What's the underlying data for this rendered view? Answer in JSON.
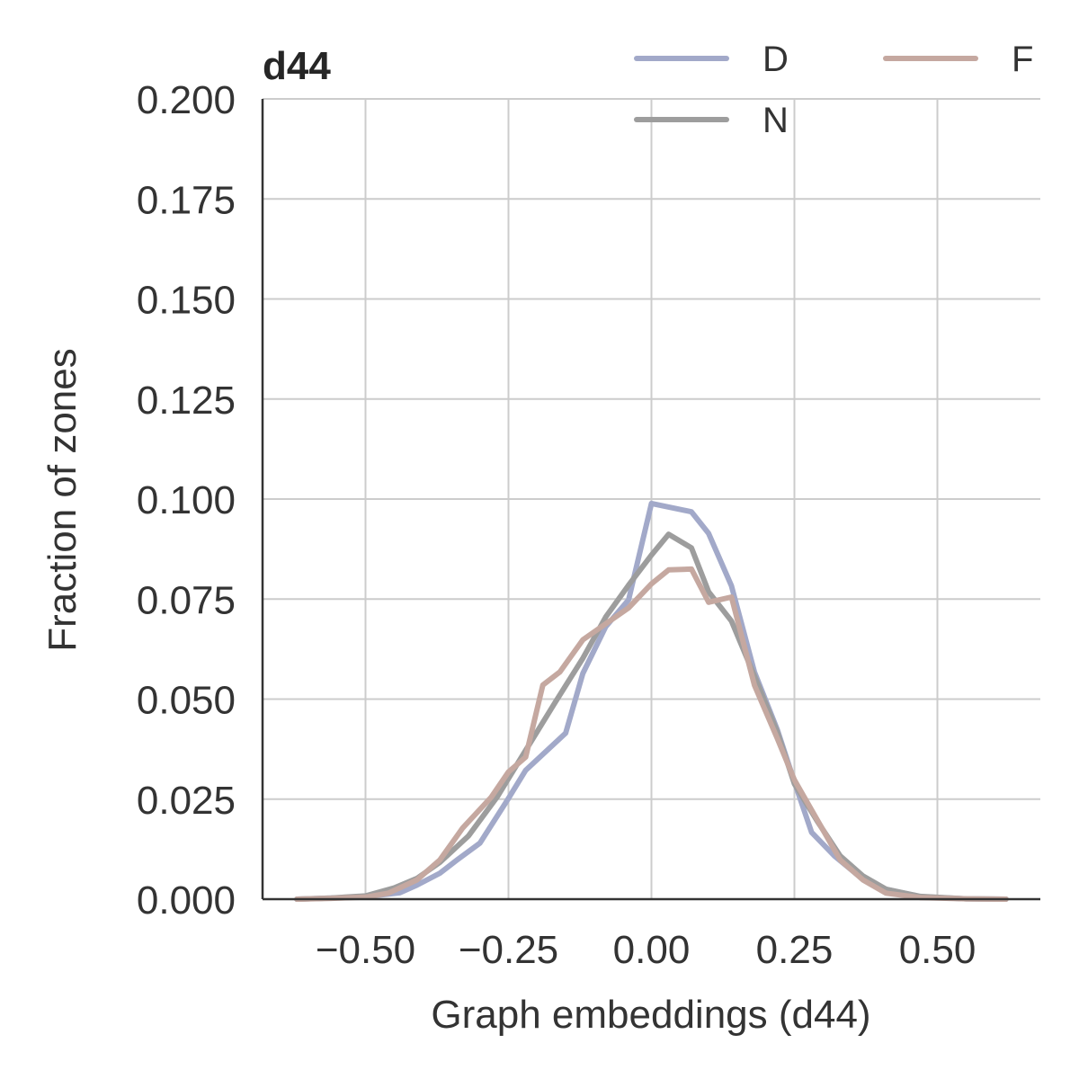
{
  "chart_data": {
    "type": "line",
    "title": "d44",
    "xlabel": "Graph embeddings (d44)",
    "ylabel": "Fraction of zones",
    "xlim": [
      -0.68,
      0.68
    ],
    "ylim": [
      0.0,
      0.2
    ],
    "x_ticks": [
      -0.5,
      -0.25,
      0.0,
      0.25,
      0.5
    ],
    "x_tick_labels": [
      "−0.50",
      "−0.25",
      "0.00",
      "0.25",
      "0.50"
    ],
    "y_ticks": [
      0.0,
      0.025,
      0.05,
      0.075,
      0.1,
      0.125,
      0.15,
      0.175,
      0.2
    ],
    "y_tick_labels": [
      "0.000",
      "0.025",
      "0.050",
      "0.075",
      "0.100",
      "0.125",
      "0.150",
      "0.175",
      "0.200"
    ],
    "grid": true,
    "legend": {
      "position": "top-right",
      "columns": 2
    },
    "series": [
      {
        "name": "D",
        "color": "#a2a9c9",
        "x": [
          -0.62,
          -0.56,
          -0.5,
          -0.44,
          -0.41,
          -0.37,
          -0.34,
          -0.3,
          -0.25,
          -0.22,
          -0.19,
          -0.15,
          -0.12,
          -0.08,
          -0.04,
          0.0,
          0.07,
          0.1,
          0.14,
          0.18,
          0.22,
          0.25,
          0.28,
          0.32,
          0.36,
          0.41,
          0.47,
          0.55,
          0.62
        ],
        "y": [
          0.0,
          0.0003,
          0.0006,
          0.0016,
          0.0035,
          0.0065,
          0.0098,
          0.014,
          0.0252,
          0.0322,
          0.0362,
          0.0415,
          0.0564,
          0.0681,
          0.0748,
          0.0989,
          0.0968,
          0.0914,
          0.0783,
          0.0568,
          0.0424,
          0.0293,
          0.0167,
          0.0108,
          0.0061,
          0.0025,
          0.0006,
          0.0001,
          0.0
        ]
      },
      {
        "name": "N",
        "color": "#9d9d9d",
        "x": [
          -0.62,
          -0.56,
          -0.5,
          -0.45,
          -0.41,
          -0.37,
          -0.32,
          -0.27,
          -0.22,
          -0.17,
          -0.12,
          -0.08,
          -0.04,
          0.0,
          0.03,
          0.07,
          0.1,
          0.14,
          0.18,
          0.22,
          0.25,
          0.29,
          0.33,
          0.37,
          0.41,
          0.47,
          0.55,
          0.62
        ],
        "y": [
          0.0,
          0.0003,
          0.0008,
          0.0028,
          0.0052,
          0.0092,
          0.0158,
          0.0255,
          0.0372,
          0.0488,
          0.0602,
          0.0705,
          0.0785,
          0.086,
          0.0912,
          0.0878,
          0.0768,
          0.0695,
          0.0558,
          0.0418,
          0.0288,
          0.0195,
          0.0108,
          0.0058,
          0.0025,
          0.0007,
          0.0001,
          0.0
        ]
      },
      {
        "name": "F",
        "color": "#c5a8a0",
        "x": [
          -0.62,
          -0.56,
          -0.5,
          -0.46,
          -0.41,
          -0.37,
          -0.33,
          -0.28,
          -0.25,
          -0.22,
          -0.19,
          -0.16,
          -0.12,
          -0.08,
          -0.04,
          0.0,
          0.03,
          0.07,
          0.1,
          0.14,
          0.18,
          0.22,
          0.25,
          0.29,
          0.33,
          0.37,
          0.41,
          0.47,
          0.55,
          0.62
        ],
        "y": [
          0.0,
          0.0002,
          0.0005,
          0.0015,
          0.0048,
          0.0098,
          0.0178,
          0.0255,
          0.0318,
          0.0355,
          0.0535,
          0.0568,
          0.0648,
          0.0688,
          0.0728,
          0.0788,
          0.0823,
          0.0825,
          0.0742,
          0.0755,
          0.0535,
          0.0402,
          0.0298,
          0.0198,
          0.0098,
          0.0048,
          0.0015,
          0.0004,
          0.0001,
          0.0
        ]
      }
    ]
  }
}
